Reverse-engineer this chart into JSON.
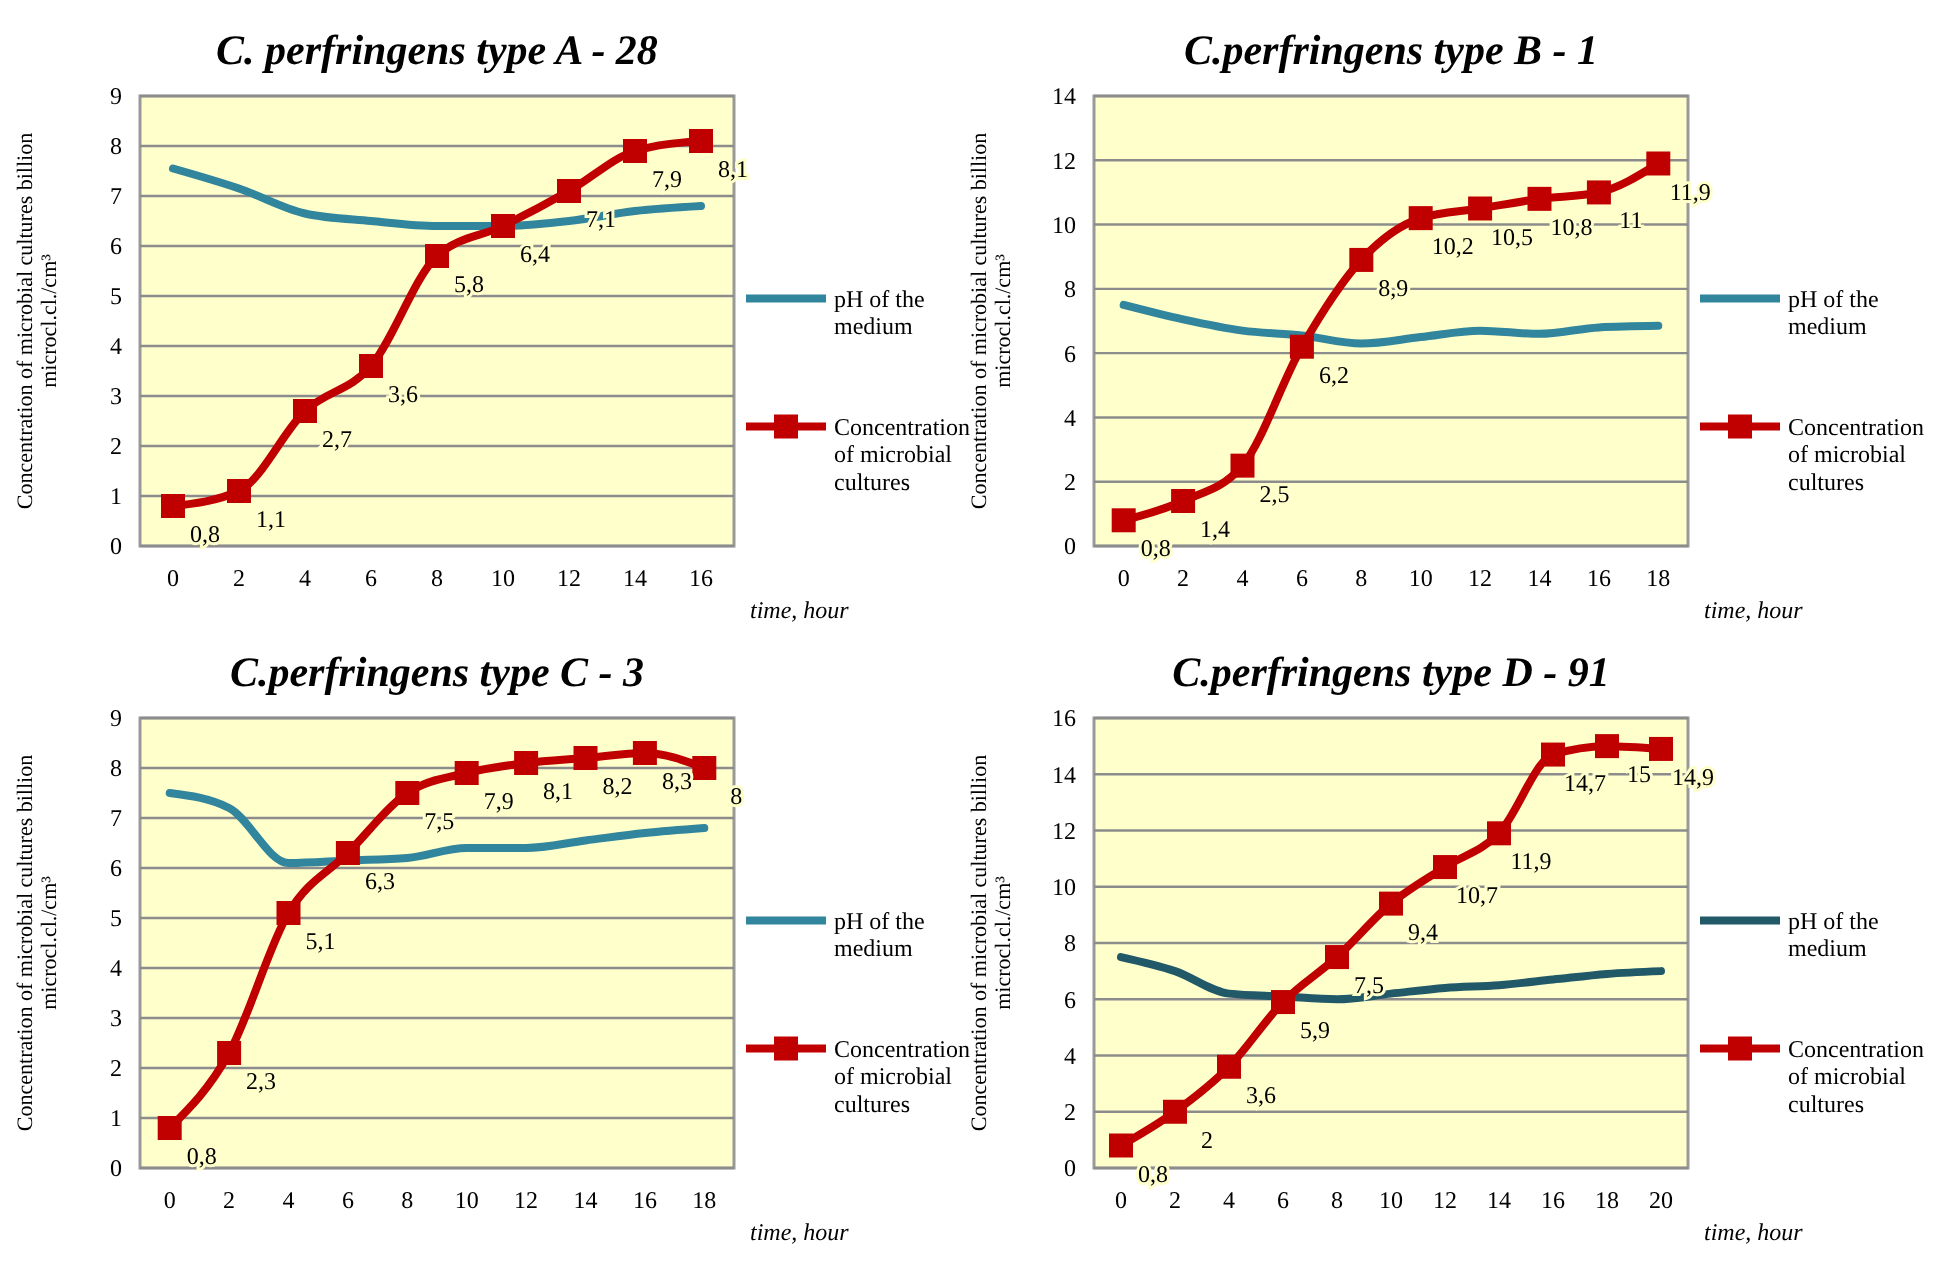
{
  "chart_data": [
    {
      "type": "line",
      "title": "C. perfringens type A - 28",
      "xlabel": "time, hour",
      "ylabel": "Concentration of microbial cultures billion microcl.cl./cm³",
      "x": [
        0,
        2,
        4,
        6,
        8,
        10,
        12,
        14,
        16
      ],
      "xlim": [
        -1,
        17
      ],
      "xticks": [
        0,
        2,
        4,
        6,
        8,
        10,
        12,
        14,
        16
      ],
      "ylim": [
        0,
        9
      ],
      "yticks": [
        0,
        1,
        2,
        3,
        4,
        5,
        6,
        7,
        8,
        9
      ],
      "grid": "y",
      "legend": "right",
      "series": [
        {
          "name": "pH of the medium",
          "color": "#31859c",
          "marker": "none",
          "values": [
            7.55,
            7.15,
            6.65,
            6.5,
            6.4,
            6.4,
            6.5,
            6.7,
            6.8
          ]
        },
        {
          "name": "Concentration of microbial cultures",
          "color": "#c00000",
          "marker": "square",
          "values": [
            0.8,
            1.1,
            2.7,
            3.6,
            5.8,
            6.4,
            7.1,
            7.9,
            8.1
          ],
          "value_labels": [
            "0,8",
            "1,1",
            "2,7",
            "3,6",
            "5,8",
            "6,4",
            "7,1",
            "7,9",
            "8,1"
          ]
        }
      ]
    },
    {
      "type": "line",
      "title": "C.perfringens type B - 1",
      "xlabel": "time, hour",
      "ylabel": "Concentration of microbial cultures billion microcl.cl./cm³",
      "x": [
        0,
        2,
        4,
        6,
        8,
        10,
        12,
        14,
        16,
        18
      ],
      "xlim": [
        -1,
        19
      ],
      "xticks": [
        0,
        2,
        4,
        6,
        8,
        10,
        12,
        14,
        16,
        18
      ],
      "ylim": [
        0,
        14
      ],
      "yticks": [
        0,
        2,
        4,
        6,
        8,
        10,
        12,
        14
      ],
      "grid": "y",
      "legend": "right",
      "series": [
        {
          "name": "pH of the medium",
          "color": "#31859c",
          "marker": "none",
          "values": [
            7.5,
            7.05,
            6.7,
            6.55,
            6.3,
            6.5,
            6.7,
            6.6,
            6.8,
            6.85
          ]
        },
        {
          "name": "Concentration of microbial cultures",
          "color": "#c00000",
          "marker": "square",
          "values": [
            0.8,
            1.4,
            2.5,
            6.2,
            8.9,
            10.2,
            10.5,
            10.8,
            11,
            11.9
          ],
          "value_labels": [
            "0,8",
            "1,4",
            "2,5",
            "6,2",
            "8,9",
            "10,2",
            "10,5",
            "10,8",
            "11",
            "11,9"
          ]
        }
      ]
    },
    {
      "type": "line",
      "title": "C.perfringens type C - 3",
      "xlabel": "time, hour",
      "ylabel": "Concentration of microbial cultures billion microcl.cl./cm³",
      "x": [
        0,
        2,
        4,
        6,
        8,
        10,
        12,
        14,
        16,
        18
      ],
      "xlim": [
        -1,
        19
      ],
      "xticks": [
        0,
        2,
        4,
        6,
        8,
        10,
        12,
        14,
        16,
        18
      ],
      "ylim": [
        0,
        9
      ],
      "yticks": [
        0,
        1,
        2,
        3,
        4,
        5,
        6,
        7,
        8,
        9
      ],
      "grid": "y",
      "legend": "right",
      "series": [
        {
          "name": "pH of the medium",
          "color": "#31859c",
          "marker": "none",
          "values": [
            7.5,
            7.2,
            6.1,
            6.15,
            6.2,
            6.4,
            6.4,
            6.55,
            6.7,
            6.8
          ]
        },
        {
          "name": "Concentration of microbial cultures",
          "color": "#c00000",
          "marker": "square",
          "values": [
            0.8,
            2.3,
            5.1,
            6.3,
            7.5,
            7.9,
            8.1,
            8.2,
            8.3,
            8
          ],
          "value_labels": [
            "0,8",
            "2,3",
            "5,1",
            "6,3",
            "7,5",
            "7,9",
            "8,1",
            "8,2",
            "8,3",
            "8"
          ]
        }
      ]
    },
    {
      "type": "line",
      "title": "C.perfringens type D - 91",
      "xlabel": "time, hour",
      "ylabel": "Concentration of microbial cultures billion microcl.cl./cm³",
      "x": [
        0,
        2,
        4,
        6,
        8,
        10,
        12,
        14,
        16,
        18,
        20
      ],
      "xlim": [
        -1,
        21
      ],
      "xticks": [
        0,
        2,
        4,
        6,
        8,
        10,
        12,
        14,
        16,
        18,
        20
      ],
      "ylim": [
        0,
        16
      ],
      "yticks": [
        0,
        2,
        4,
        6,
        8,
        10,
        12,
        14,
        16
      ],
      "grid": "y",
      "legend": "right",
      "series": [
        {
          "name": "pH of the medium",
          "color": "#215968",
          "marker": "none",
          "values": [
            7.5,
            7.0,
            6.2,
            6.1,
            6.0,
            6.2,
            6.4,
            6.5,
            6.7,
            6.9,
            7.0
          ]
        },
        {
          "name": "Concentration of microbial cultures",
          "color": "#c00000",
          "marker": "square",
          "values": [
            0.8,
            2,
            3.6,
            5.9,
            7.5,
            9.4,
            10.7,
            11.9,
            14.7,
            15,
            14.9
          ],
          "value_labels": [
            "0,8",
            "2",
            "3,6",
            "5,9",
            "7,5",
            "9,4",
            "10,7",
            "11,9",
            "14,7",
            "15",
            "14,9"
          ]
        }
      ]
    }
  ]
}
